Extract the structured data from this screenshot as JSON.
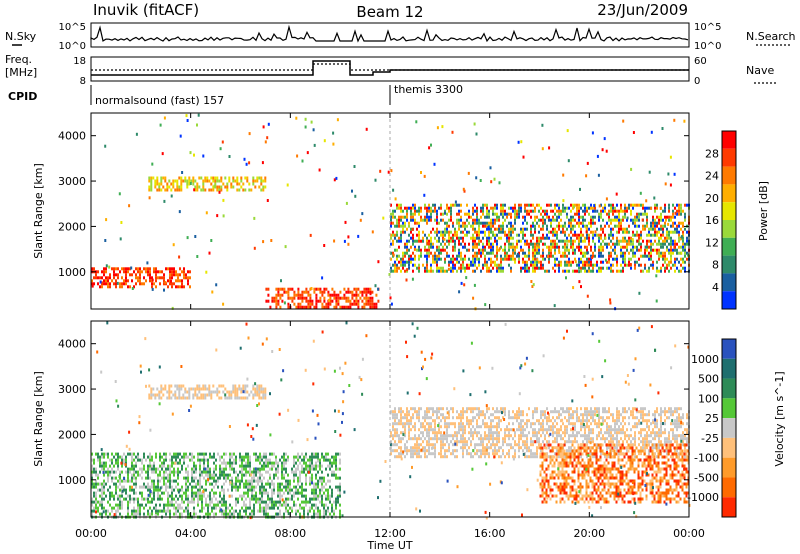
{
  "header": {
    "station": "Inuvik (fitACF)",
    "beam": "Beam 12",
    "date": "23/Jun/2009"
  },
  "top_panels": {
    "noise_left_label": "N.Sky",
    "noise_right_label": "N.Search",
    "noise_left_ticks": [
      "10^5",
      "10^0"
    ],
    "noise_right_ticks": [
      "10^5",
      "10^0"
    ],
    "freq_label_1": "Freq.",
    "freq_label_2": "[MHz]",
    "freq_ticks": [
      "18",
      "8"
    ],
    "nave_label": "Nave",
    "nave_ticks": [
      "60",
      "0"
    ],
    "cpid_label": "CPID",
    "cpid_modes": [
      {
        "name": "normalsound (fast) 157",
        "start_hour": 0
      },
      {
        "name": "themis 3300",
        "start_hour": 12
      }
    ]
  },
  "x_axis": {
    "label": "Time UT",
    "ticks": [
      "00:00",
      "04:00",
      "08:00",
      "12:00",
      "16:00",
      "20:00",
      "00:00"
    ]
  },
  "chart_data": [
    {
      "type": "heatmap",
      "parameter": "power",
      "ylabel": "Slant Range [km]",
      "ylim": [
        180,
        4500
      ],
      "y_ticks": [
        "1000",
        "2000",
        "3000",
        "4000"
      ],
      "xlim_hours": [
        0,
        24
      ],
      "colorbar_label": "Power [dB]",
      "colorbar_ticks": [
        "28",
        "24",
        "20",
        "16",
        "12",
        "8",
        "4"
      ],
      "colorbar_colors": [
        "#ff0000",
        "#ff3a00",
        "#ff7a00",
        "#ffae00",
        "#e6e600",
        "#9ad93a",
        "#3fae54",
        "#2e8a6a",
        "#1a5fa0",
        "#0033ff"
      ],
      "features": [
        {
          "t_start": 0,
          "t_end": 4,
          "r_min": 700,
          "r_max": 1100,
          "level": "high"
        },
        {
          "t_start": 7,
          "t_end": 11.5,
          "r_min": 200,
          "r_max": 650,
          "level": "high"
        },
        {
          "t_start": 2.3,
          "t_end": 7,
          "r_min": 2800,
          "r_max": 3100,
          "level": "medium"
        },
        {
          "t_start": 12,
          "t_end": 24,
          "r_min": 1000,
          "r_max": 2500,
          "level": "mixed"
        }
      ]
    },
    {
      "type": "heatmap",
      "parameter": "velocity",
      "ylabel": "Slant Range [km]",
      "ylim": [
        180,
        4500
      ],
      "y_ticks": [
        "1000",
        "2000",
        "3000",
        "4000"
      ],
      "xlim_hours": [
        0,
        24
      ],
      "colorbar_label": "Velocity [m s^-1]",
      "colorbar_ticks": [
        "1000",
        "500",
        "100",
        "25",
        "-25",
        "-100",
        "-500",
        "-1000"
      ],
      "colorbar_colors": [
        "#2a52be",
        "#1f6f6f",
        "#2e8b57",
        "#55c837",
        "#c8c8c8",
        "#ffc07a",
        "#ff9b2a",
        "#ff6a00",
        "#ff2a00"
      ],
      "features": [
        {
          "t_start": 0,
          "t_end": 10,
          "r_min": 200,
          "r_max": 1600,
          "level": "positive"
        },
        {
          "t_start": 2.3,
          "t_end": 7,
          "r_min": 2800,
          "r_max": 3100,
          "level": "near-zero"
        },
        {
          "t_start": 12,
          "t_end": 24,
          "r_min": 1500,
          "r_max": 2600,
          "level": "near-zero"
        },
        {
          "t_start": 18,
          "t_end": 24,
          "r_min": 500,
          "r_max": 1800,
          "level": "negative"
        }
      ]
    }
  ]
}
